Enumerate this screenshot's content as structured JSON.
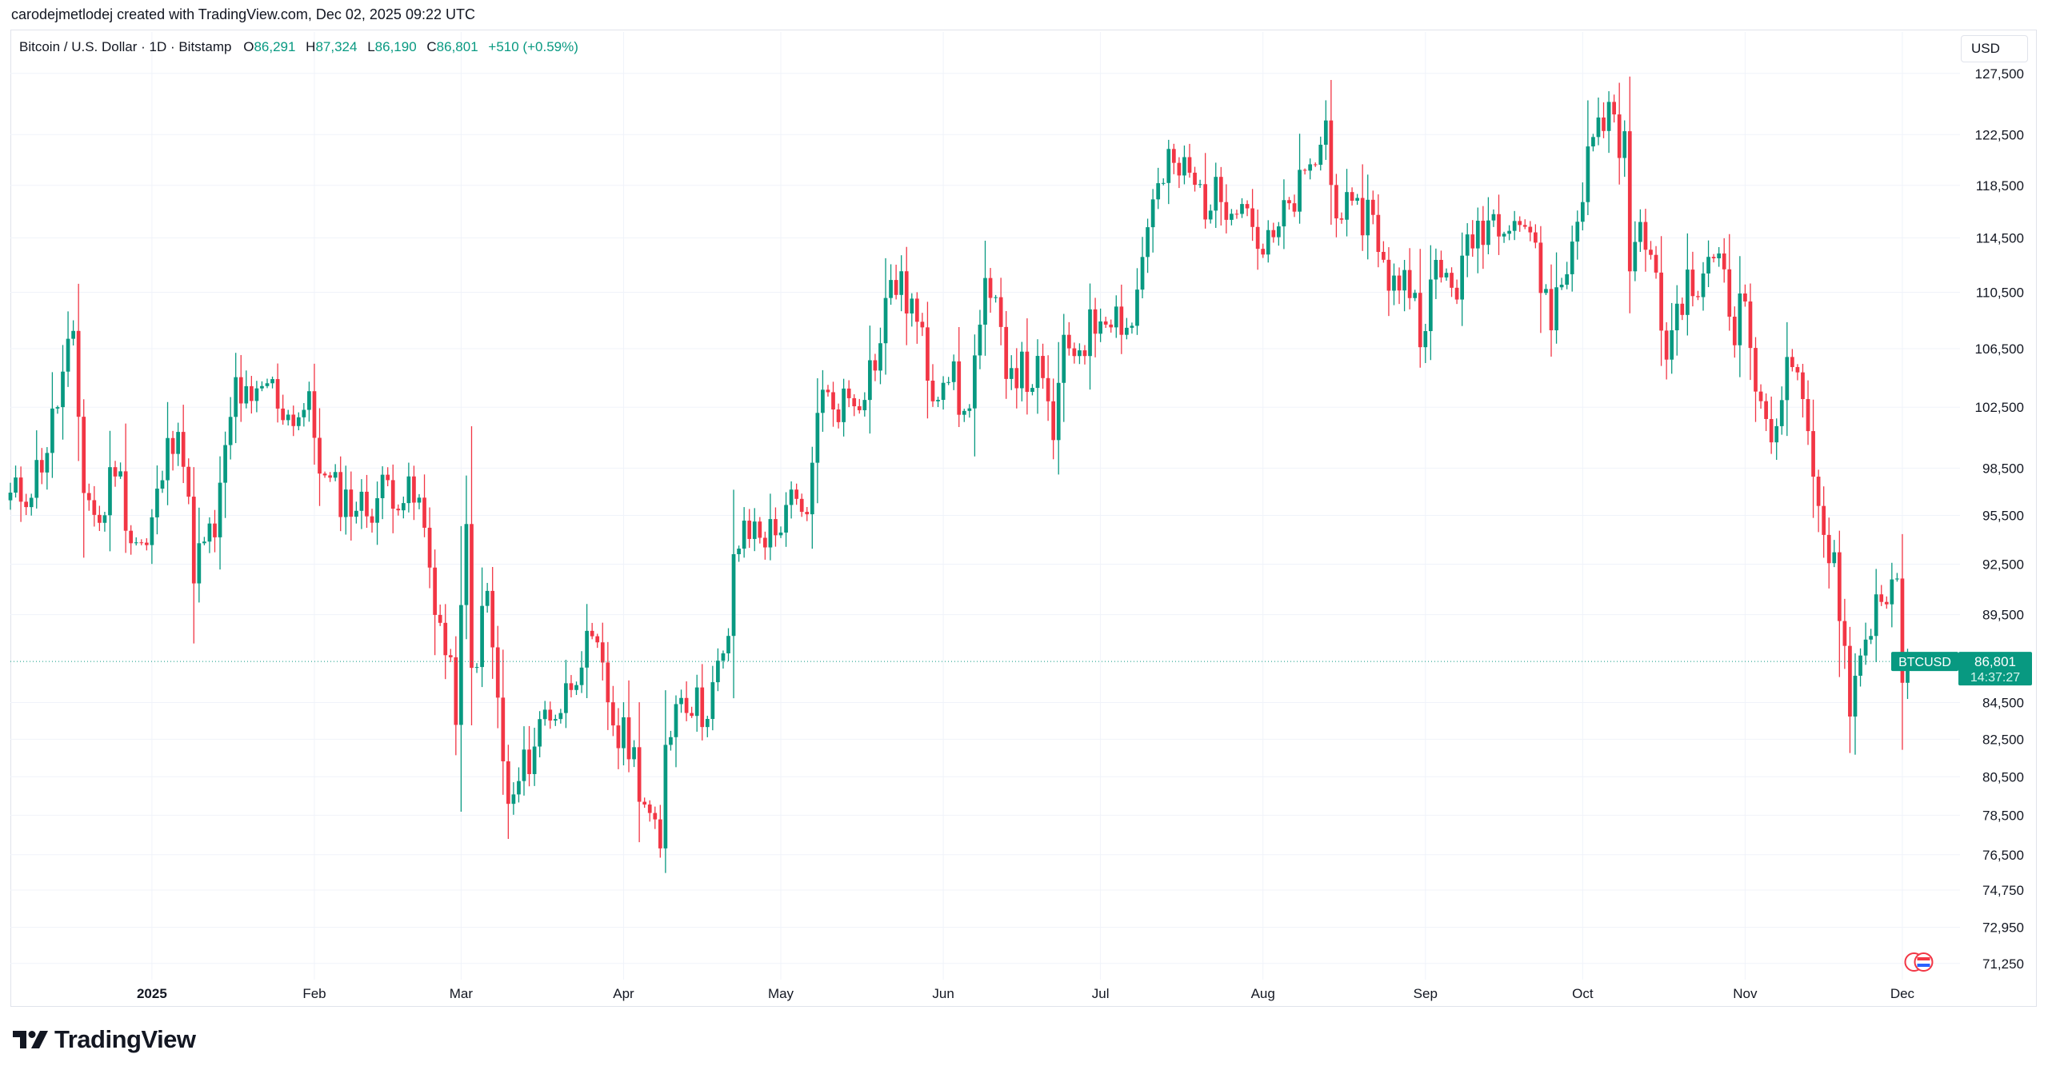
{
  "header": {
    "credit": "carodejmetlodej created with TradingView.com, Dec 02, 2025 09:22 UTC"
  },
  "legend": {
    "symbol": "Bitcoin / U.S. Dollar · 1D · Bitstamp",
    "o_label": "O",
    "o_value": "86,291",
    "h_label": "H",
    "h_value": "87,324",
    "l_label": "L",
    "l_value": "86,190",
    "c_label": "C",
    "c_value": "86,801",
    "change": "+510 (+0.59%)"
  },
  "currency": "USD",
  "price_tag": {
    "symbol": "BTCUSD",
    "price": "86,801",
    "countdown": "14:37:27"
  },
  "brand": {
    "name": "TradingView"
  },
  "colors": {
    "up": "#089981",
    "down": "#f23645",
    "grid": "#f0f3fa",
    "text": "#131722"
  },
  "chart_data": {
    "type": "candlestick",
    "title": "Bitcoin / U.S. Dollar · 1D · Bitstamp",
    "y_axis_scale": "log",
    "y_ticks": [
      127500,
      122500,
      118500,
      114500,
      110500,
      106500,
      102500,
      98500,
      95500,
      92500,
      89500,
      84500,
      82500,
      80500,
      78500,
      76500,
      74750,
      72950,
      71250
    ],
    "y_tick_labels": [
      "127,500",
      "122,500",
      "118,500",
      "114,500",
      "110,500",
      "106,500",
      "102,500",
      "98,500",
      "95,500",
      "92,500",
      "89,500",
      "84,500",
      "82,500",
      "80,500",
      "78,500",
      "76,500",
      "74,750",
      "72,950",
      "71,250"
    ],
    "x_tick_labels": [
      {
        "label": "2025",
        "date": "2025-01-01",
        "bold": true
      },
      {
        "label": "Feb",
        "date": "2025-02-01"
      },
      {
        "label": "Mar",
        "date": "2025-03-01"
      },
      {
        "label": "Apr",
        "date": "2025-04-01"
      },
      {
        "label": "May",
        "date": "2025-05-01"
      },
      {
        "label": "Jun",
        "date": "2025-06-01"
      },
      {
        "label": "Jul",
        "date": "2025-07-01"
      },
      {
        "label": "Aug",
        "date": "2025-08-01"
      },
      {
        "label": "Sep",
        "date": "2025-09-01"
      },
      {
        "label": "Oct",
        "date": "2025-10-01"
      },
      {
        "label": "Nov",
        "date": "2025-11-01"
      },
      {
        "label": "Dec",
        "date": "2025-12-01"
      }
    ],
    "x_range": [
      "2024-12-05",
      "2025-12-12"
    ],
    "y_range": [
      70500,
      131000
    ],
    "last_price": 86801,
    "closes": [
      {
        "date": "2024-12-05",
        "close": 96500
      },
      {
        "date": "2024-12-09",
        "close": 97400
      },
      {
        "date": "2024-12-12",
        "close": 100000
      },
      {
        "date": "2024-12-16",
        "close": 106100
      },
      {
        "date": "2024-12-17",
        "close": 106300
      },
      {
        "date": "2024-12-19",
        "close": 97500
      },
      {
        "date": "2024-12-22",
        "close": 94800
      },
      {
        "date": "2024-12-25",
        "close": 99100
      },
      {
        "date": "2024-12-28",
        "close": 94300
      },
      {
        "date": "2024-12-31",
        "close": 93400
      },
      {
        "date": "2025-01-03",
        "close": 98100
      },
      {
        "date": "2025-01-06",
        "close": 102200
      },
      {
        "date": "2025-01-09",
        "close": 92500
      },
      {
        "date": "2025-01-13",
        "close": 94500
      },
      {
        "date": "2025-01-17",
        "close": 104000
      },
      {
        "date": "2025-01-20",
        "close": 102100
      },
      {
        "date": "2025-01-23",
        "close": 104200
      },
      {
        "date": "2025-01-27",
        "close": 102000
      },
      {
        "date": "2025-01-31",
        "close": 102400
      },
      {
        "date": "2025-02-03",
        "close": 97500
      },
      {
        "date": "2025-02-07",
        "close": 96500
      },
      {
        "date": "2025-02-11",
        "close": 95900
      },
      {
        "date": "2025-02-15",
        "close": 97500
      },
      {
        "date": "2025-02-19",
        "close": 96600
      },
      {
        "date": "2025-02-21",
        "close": 96100
      },
      {
        "date": "2025-02-25",
        "close": 88800
      },
      {
        "date": "2025-02-28",
        "close": 84300
      },
      {
        "date": "2025-03-02",
        "close": 94200
      },
      {
        "date": "2025-03-03",
        "close": 86100
      },
      {
        "date": "2025-03-06",
        "close": 90600
      },
      {
        "date": "2025-03-10",
        "close": 78600
      },
      {
        "date": "2025-03-13",
        "close": 80900
      },
      {
        "date": "2025-03-17",
        "close": 84000
      },
      {
        "date": "2025-03-20",
        "close": 84200
      },
      {
        "date": "2025-03-24",
        "close": 87500
      },
      {
        "date": "2025-03-27",
        "close": 87000
      },
      {
        "date": "2025-03-31",
        "close": 82500
      },
      {
        "date": "2025-04-02",
        "close": 82500
      },
      {
        "date": "2025-04-06",
        "close": 78300
      },
      {
        "date": "2025-04-08",
        "close": 76300
      },
      {
        "date": "2025-04-09",
        "close": 82600
      },
      {
        "date": "2025-04-12",
        "close": 85300
      },
      {
        "date": "2025-04-16",
        "close": 84000
      },
      {
        "date": "2025-04-21",
        "close": 87500
      },
      {
        "date": "2025-04-22",
        "close": 93400
      },
      {
        "date": "2025-04-26",
        "close": 94700
      },
      {
        "date": "2025-04-30",
        "close": 94200
      },
      {
        "date": "2025-05-02",
        "close": 96500
      },
      {
        "date": "2025-05-06",
        "close": 94700
      },
      {
        "date": "2025-05-08",
        "close": 103000
      },
      {
        "date": "2025-05-12",
        "close": 102800
      },
      {
        "date": "2025-05-16",
        "close": 103500
      },
      {
        "date": "2025-05-20",
        "close": 106800
      },
      {
        "date": "2025-05-22",
        "close": 111700
      },
      {
        "date": "2025-05-26",
        "close": 109500
      },
      {
        "date": "2025-05-30",
        "close": 103900
      },
      {
        "date": "2025-06-02",
        "close": 105500
      },
      {
        "date": "2025-06-05",
        "close": 101500
      },
      {
        "date": "2025-06-09",
        "close": 110200
      },
      {
        "date": "2025-06-11",
        "close": 108600
      },
      {
        "date": "2025-06-13",
        "close": 105900
      },
      {
        "date": "2025-06-17",
        "close": 104500
      },
      {
        "date": "2025-06-19",
        "close": 104700
      },
      {
        "date": "2025-06-22",
        "close": 100900
      },
      {
        "date": "2025-06-24",
        "close": 106000
      },
      {
        "date": "2025-06-28",
        "close": 107300
      },
      {
        "date": "2025-07-02",
        "close": 109600
      },
      {
        "date": "2025-07-07",
        "close": 108100
      },
      {
        "date": "2025-07-10",
        "close": 116000
      },
      {
        "date": "2025-07-14",
        "close": 119800
      },
      {
        "date": "2025-07-17",
        "close": 119600
      },
      {
        "date": "2025-07-21",
        "close": 117400
      },
      {
        "date": "2025-07-25",
        "close": 117600
      },
      {
        "date": "2025-07-28",
        "close": 118100
      },
      {
        "date": "2025-08-01",
        "close": 113300
      },
      {
        "date": "2025-08-03",
        "close": 114200
      },
      {
        "date": "2025-08-07",
        "close": 117500
      },
      {
        "date": "2025-08-10",
        "close": 119300
      },
      {
        "date": "2025-08-13",
        "close": 123300
      },
      {
        "date": "2025-08-14",
        "close": 118300
      },
      {
        "date": "2025-08-18",
        "close": 115600
      },
      {
        "date": "2025-08-22",
        "close": 116900
      },
      {
        "date": "2025-08-25",
        "close": 110100
      },
      {
        "date": "2025-08-28",
        "close": 112400
      },
      {
        "date": "2025-08-31",
        "close": 108200
      },
      {
        "date": "2025-09-03",
        "close": 111700
      },
      {
        "date": "2025-09-07",
        "close": 111200
      },
      {
        "date": "2025-09-11",
        "close": 115400
      },
      {
        "date": "2025-09-13",
        "close": 115900
      },
      {
        "date": "2025-09-17",
        "close": 116700
      },
      {
        "date": "2025-09-21",
        "close": 115200
      },
      {
        "date": "2025-09-22",
        "close": 112700
      },
      {
        "date": "2025-09-25",
        "close": 109000
      },
      {
        "date": "2025-09-28",
        "close": 112200
      },
      {
        "date": "2025-10-01",
        "close": 118600
      },
      {
        "date": "2025-10-03",
        "close": 122200
      },
      {
        "date": "2025-10-06",
        "close": 124800
      },
      {
        "date": "2025-10-09",
        "close": 121300
      },
      {
        "date": "2025-10-10",
        "close": 112800
      },
      {
        "date": "2025-10-13",
        "close": 115200
      },
      {
        "date": "2025-10-16",
        "close": 108200
      },
      {
        "date": "2025-10-17",
        "close": 106500
      },
      {
        "date": "2025-10-20",
        "close": 110500
      },
      {
        "date": "2025-10-24",
        "close": 111000
      },
      {
        "date": "2025-10-27",
        "close": 114000
      },
      {
        "date": "2025-10-30",
        "close": 108300
      },
      {
        "date": "2025-11-01",
        "close": 110100
      },
      {
        "date": "2025-11-04",
        "close": 101500
      },
      {
        "date": "2025-11-06",
        "close": 101300
      },
      {
        "date": "2025-11-10",
        "close": 105900
      },
      {
        "date": "2025-11-13",
        "close": 99700
      },
      {
        "date": "2025-11-15",
        "close": 95500
      },
      {
        "date": "2025-11-18",
        "close": 92900
      },
      {
        "date": "2025-11-21",
        "close": 84800
      },
      {
        "date": "2025-11-23",
        "close": 86800
      },
      {
        "date": "2025-11-26",
        "close": 90500
      },
      {
        "date": "2025-11-28",
        "close": 90900
      },
      {
        "date": "2025-11-30",
        "close": 90400
      },
      {
        "date": "2025-12-01",
        "close": 86300
      },
      {
        "date": "2025-12-02",
        "close": 86801
      }
    ]
  }
}
